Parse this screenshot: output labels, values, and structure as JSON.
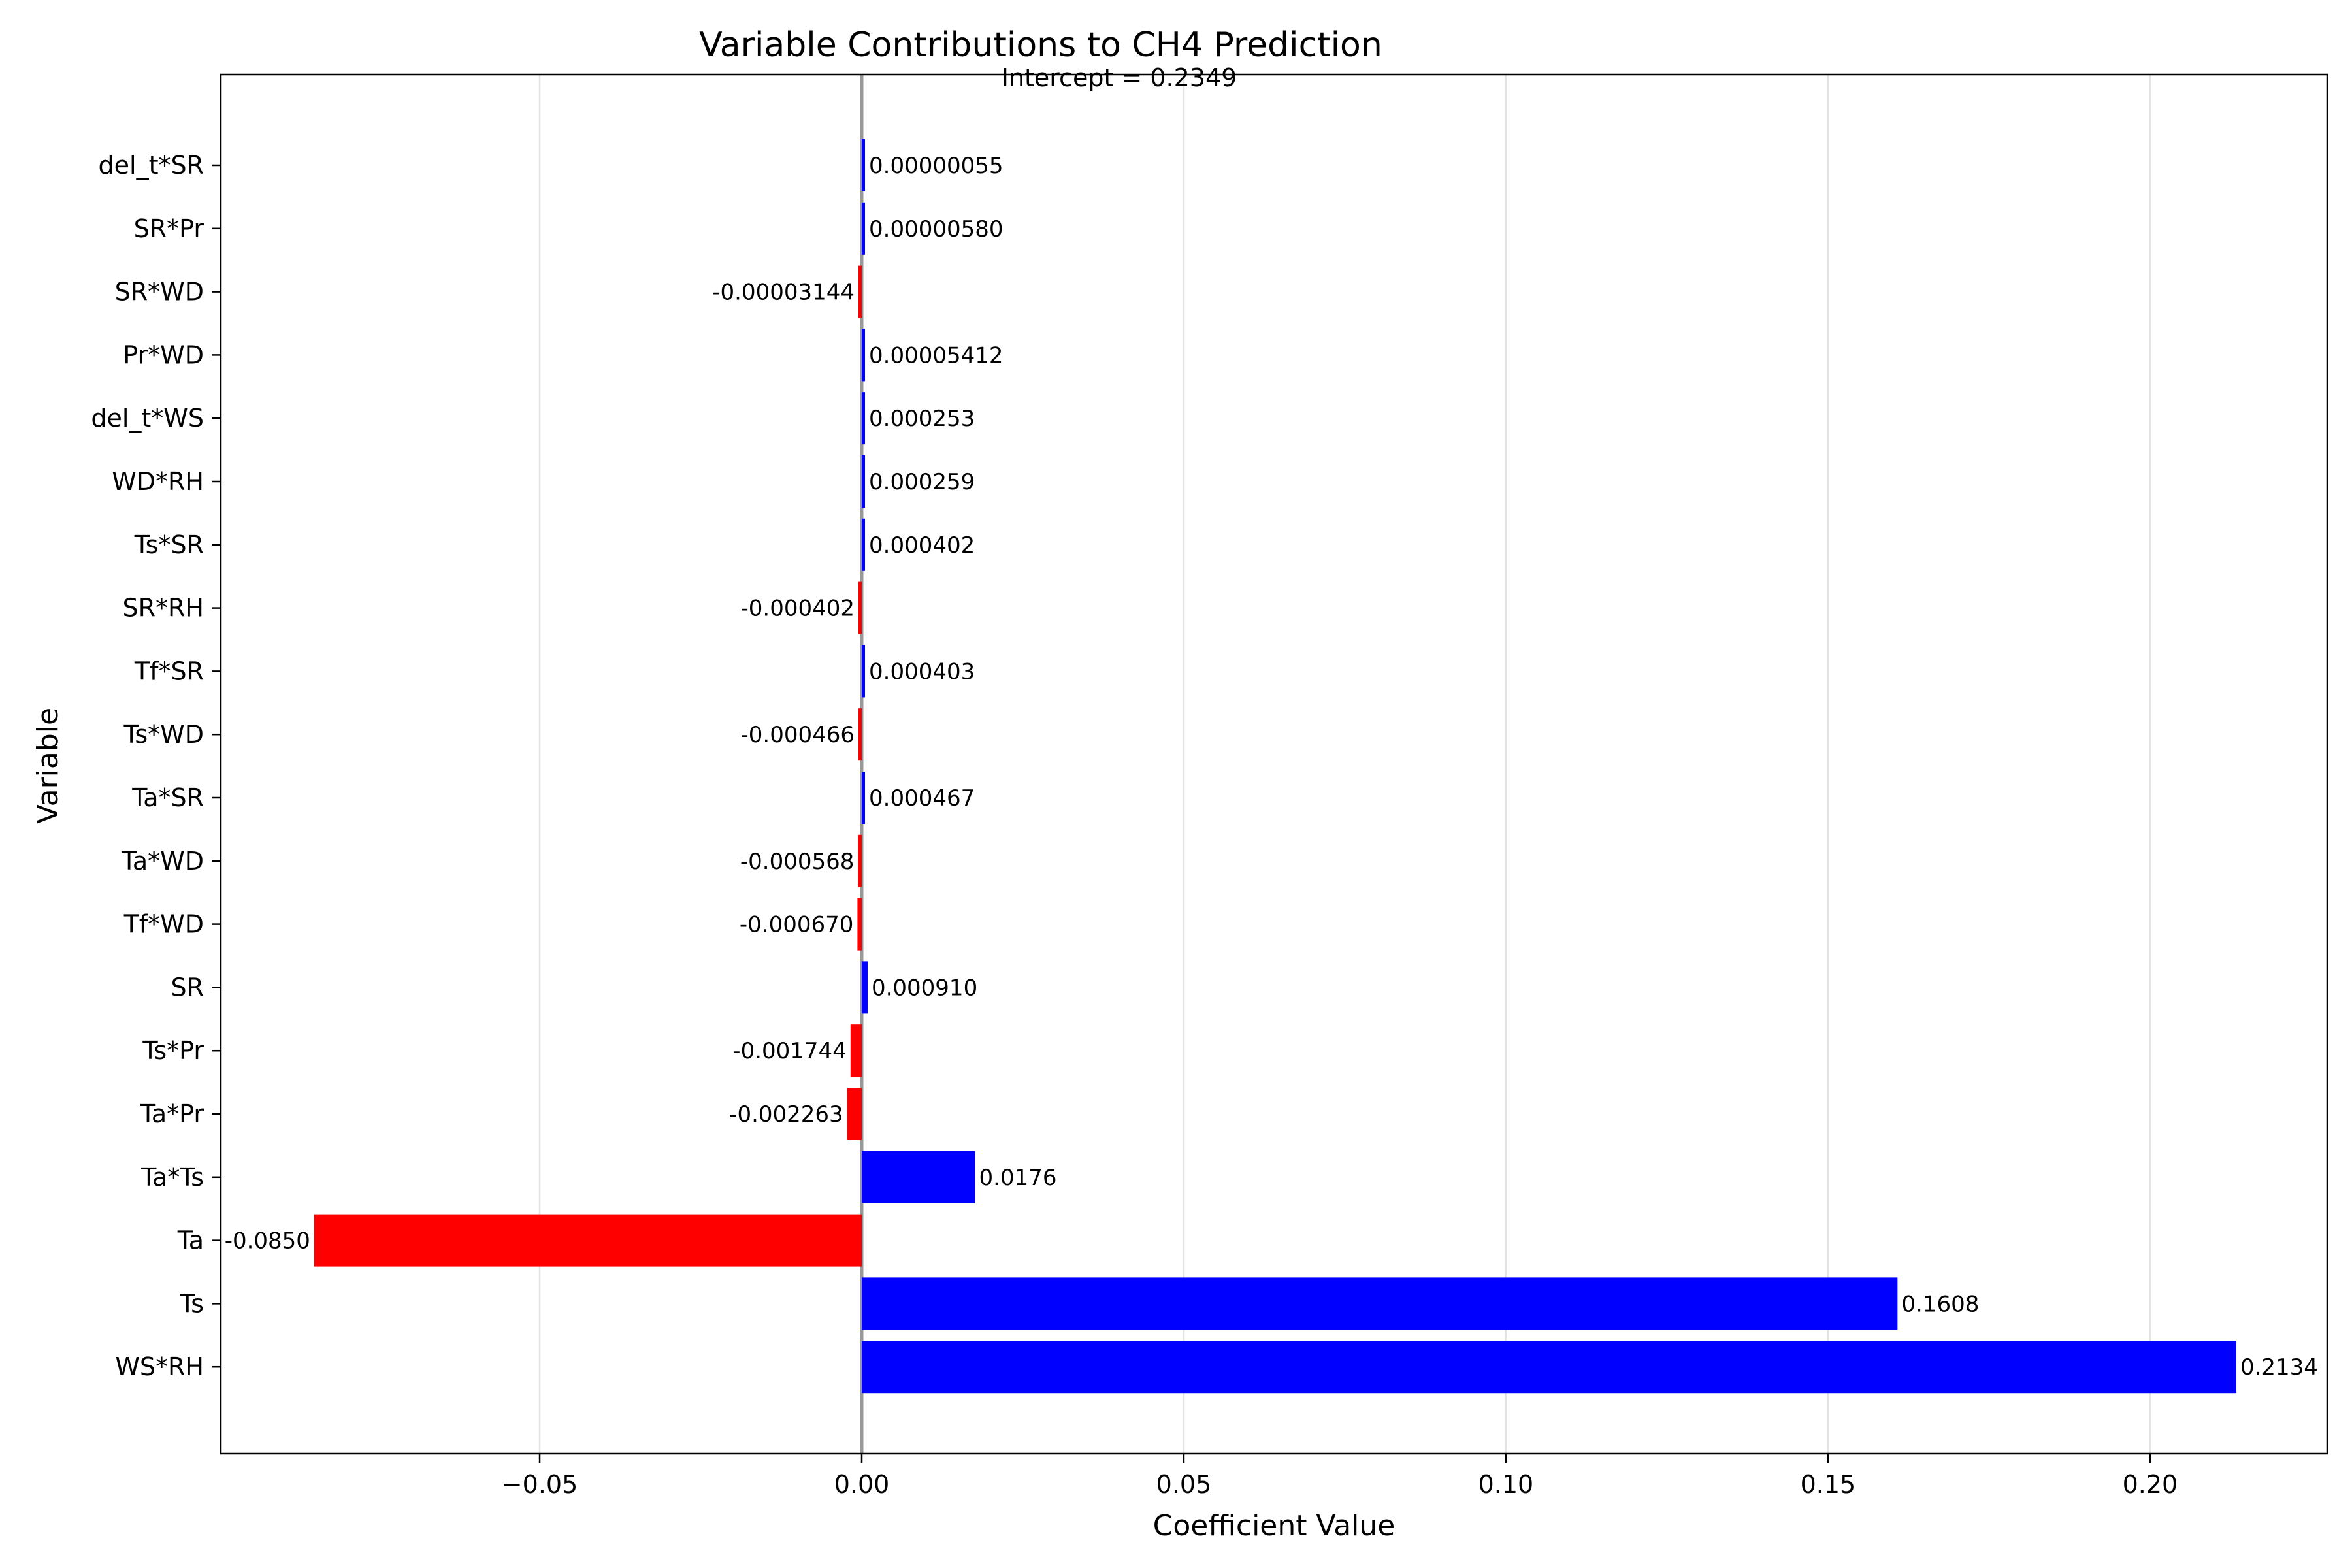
{
  "chart_data": {
    "type": "bar",
    "orientation": "horizontal",
    "title": "Variable Contributions to CH4 Prediction",
    "annotation": "Intercept = 0.2349",
    "xlabel": "Coefficient Value",
    "ylabel": "Variable",
    "xlim": [
      -0.0995,
      0.2275
    ],
    "xticks": [
      -0.05,
      0.0,
      0.05,
      0.1,
      0.15,
      0.2
    ],
    "xtick_labels": [
      "−0.05",
      "0.00",
      "0.05",
      "0.10",
      "0.15",
      "0.20"
    ],
    "grid": "x",
    "positive_color": "#0000ff",
    "negative_color": "#ff0000",
    "zero_line_color": "#999999",
    "categories": [
      "del_t*SR",
      "SR*Pr",
      "SR*WD",
      "Pr*WD",
      "del_t*WS",
      "WD*RH",
      "Ts*SR",
      "SR*RH",
      "Tf*SR",
      "Ts*WD",
      "Ta*SR",
      "Ta*WD",
      "Tf*WD",
      "SR",
      "Ts*Pr",
      "Ta*Pr",
      "Ta*Ts",
      "Ta",
      "Ts",
      "WS*RH"
    ],
    "values": [
      5.5e-07,
      5.8e-06,
      -3.144e-05,
      5.412e-05,
      0.000253,
      0.000259,
      0.000402,
      -0.000402,
      0.000403,
      -0.000466,
      0.000467,
      -0.000568,
      -0.00067,
      0.00091,
      -0.001744,
      -0.002263,
      0.0176,
      -0.085,
      0.1608,
      0.2134
    ],
    "labels": [
      "0.00000055",
      "0.00000580",
      "-0.00003144",
      "0.00005412",
      "0.000253",
      "0.000259",
      "0.000402",
      "-0.000402",
      "0.000403",
      "-0.000466",
      "0.000467",
      "-0.000568",
      "-0.000670",
      "0.000910",
      "-0.001744",
      "-0.002263",
      "0.0176",
      "-0.0850",
      "0.1608",
      "0.2134"
    ]
  }
}
